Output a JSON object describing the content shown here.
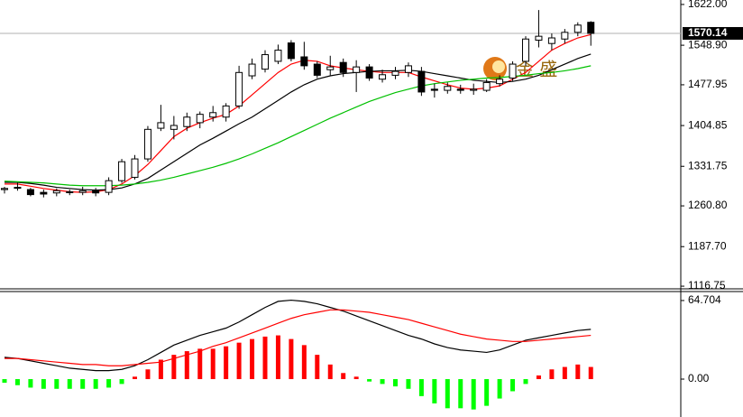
{
  "watermark": "金 盛",
  "chart_data": [
    {
      "type": "candlestick",
      "open": [
        1290,
        1293,
        1290,
        1285,
        1284,
        1286,
        1285,
        1288,
        1285,
        1306,
        1312,
        1345,
        1400,
        1398,
        1403,
        1410,
        1420,
        1420,
        1440,
        1494,
        1506,
        1520,
        1553,
        1528,
        1515,
        1505,
        1518,
        1500,
        1510,
        1488,
        1495,
        1500,
        1502,
        1470,
        1468,
        1470,
        1468,
        1468,
        1480,
        1490,
        1520,
        1558,
        1552,
        1560,
        1572,
        1590
      ],
      "high": [
        1295,
        1302,
        1293,
        1290,
        1292,
        1290,
        1295,
        1293,
        1312,
        1345,
        1352,
        1404,
        1442,
        1422,
        1428,
        1430,
        1440,
        1445,
        1512,
        1525,
        1540,
        1550,
        1558,
        1555,
        1520,
        1530,
        1525,
        1522,
        1515,
        1505,
        1510,
        1518,
        1510,
        1480,
        1482,
        1478,
        1480,
        1488,
        1495,
        1520,
        1565,
        1612,
        1570,
        1578,
        1590,
        1592
      ],
      "low": [
        1283,
        1288,
        1278,
        1276,
        1278,
        1280,
        1280,
        1278,
        1280,
        1302,
        1308,
        1340,
        1395,
        1380,
        1395,
        1400,
        1412,
        1412,
        1435,
        1488,
        1500,
        1515,
        1520,
        1505,
        1490,
        1495,
        1492,
        1465,
        1485,
        1482,
        1488,
        1492,
        1458,
        1455,
        1462,
        1462,
        1460,
        1465,
        1475,
        1485,
        1512,
        1545,
        1540,
        1552,
        1565,
        1548
      ],
      "close": [
        1292,
        1294,
        1281,
        1282,
        1288,
        1285,
        1288,
        1284,
        1306,
        1340,
        1345,
        1398,
        1410,
        1405,
        1420,
        1425,
        1428,
        1440,
        1500,
        1515,
        1532,
        1540,
        1525,
        1512,
        1495,
        1510,
        1500,
        1510,
        1490,
        1496,
        1502,
        1512,
        1465,
        1468,
        1475,
        1468,
        1470,
        1482,
        1488,
        1515,
        1560,
        1565,
        1562,
        1572,
        1585,
        1570.14
      ],
      "up_color": "#ffffff",
      "down_color": "#000000",
      "overlays": [
        {
          "color": "#ff0000",
          "values": [
            1300,
            1300,
            1296,
            1292,
            1289,
            1286,
            1285,
            1286,
            1290,
            1300,
            1315,
            1335,
            1360,
            1385,
            1400,
            1410,
            1418,
            1425,
            1440,
            1460,
            1480,
            1500,
            1515,
            1522,
            1520,
            1512,
            1508,
            1505,
            1502,
            1500,
            1500,
            1500,
            1492,
            1485,
            1478,
            1472,
            1470,
            1472,
            1476,
            1488,
            1500,
            1520,
            1540,
            1552,
            1562,
            1568
          ]
        },
        {
          "color": "#000000",
          "values": [
            1303,
            1303,
            1301,
            1298,
            1294,
            1292,
            1290,
            1289,
            1290,
            1293,
            1300,
            1310,
            1325,
            1340,
            1355,
            1370,
            1382,
            1395,
            1408,
            1420,
            1435,
            1450,
            1465,
            1478,
            1488,
            1494,
            1498,
            1500,
            1502,
            1503,
            1503,
            1504,
            1502,
            1498,
            1494,
            1490,
            1486,
            1484,
            1482,
            1484,
            1488,
            1495,
            1505,
            1515,
            1525,
            1533
          ]
        },
        {
          "color": "#00c000",
          "values": [
            1305,
            1304,
            1303,
            1302,
            1300,
            1298,
            1297,
            1297,
            1297,
            1298,
            1300,
            1303,
            1307,
            1312,
            1318,
            1324,
            1330,
            1337,
            1345,
            1354,
            1364,
            1374,
            1385,
            1396,
            1407,
            1418,
            1428,
            1438,
            1448,
            1456,
            1464,
            1470,
            1476,
            1480,
            1483,
            1486,
            1488,
            1490,
            1491,
            1493,
            1495,
            1498,
            1500,
            1503,
            1507,
            1512
          ]
        }
      ],
      "last_price": 1570.14,
      "ylim": [
        1112,
        1630
      ],
      "yticks": [
        {
          "value": 1622,
          "label": "1622.00"
        },
        {
          "value": 1548.9,
          "label": "1548.90"
        },
        {
          "value": 1477.95,
          "label": "1477.95"
        },
        {
          "value": 1404.85,
          "label": "1404.85"
        },
        {
          "value": 1331.75,
          "label": "1331.75"
        },
        {
          "value": 1260.8,
          "label": "1260.80"
        },
        {
          "value": 1187.7,
          "label": "1187.70"
        },
        {
          "value": 1116.75,
          "label": "1116.75"
        }
      ]
    },
    {
      "type": "macd",
      "histogram": [
        -3,
        -5,
        -7,
        -8,
        -8,
        -8,
        -8,
        -8,
        -7,
        -4,
        2,
        8,
        16,
        20,
        23,
        25,
        25,
        27,
        30,
        33,
        35,
        36,
        33,
        28,
        20,
        12,
        5,
        2,
        -2,
        -4,
        -6,
        -8,
        -14,
        -20,
        -24,
        -24,
        -25,
        -22,
        -16,
        -10,
        -4,
        3,
        8,
        10,
        12,
        10
      ],
      "positive_color": "#ff0000",
      "negative_color": "#00ff00",
      "lines": [
        {
          "color": "#000000",
          "values": [
            18,
            17,
            15,
            13,
            11,
            9,
            8,
            7,
            7,
            8,
            11,
            16,
            22,
            28,
            32,
            36,
            39,
            42,
            47,
            53,
            59,
            64,
            65,
            64,
            62,
            59,
            56,
            52,
            48,
            44,
            40,
            36,
            33,
            29,
            26,
            24,
            23,
            22,
            24,
            28,
            32,
            34,
            36,
            38,
            40,
            41
          ]
        },
        {
          "color": "#ff0000",
          "values": [
            17,
            17,
            16,
            15,
            14,
            13,
            12,
            12,
            11,
            11,
            12,
            13,
            14,
            17,
            20,
            23,
            27,
            30,
            34,
            38,
            42,
            46,
            50,
            53,
            55,
            57,
            57,
            56,
            55,
            53,
            51,
            49,
            46,
            43,
            40,
            37,
            35,
            33,
            32,
            31,
            31,
            32,
            33,
            34,
            35,
            36
          ]
        }
      ],
      "ylim": [
        -31.2,
        72.1
      ],
      "yticks": [
        64.704,
        {
          "value": 0,
          "label": "0.00"
        }
      ]
    }
  ]
}
